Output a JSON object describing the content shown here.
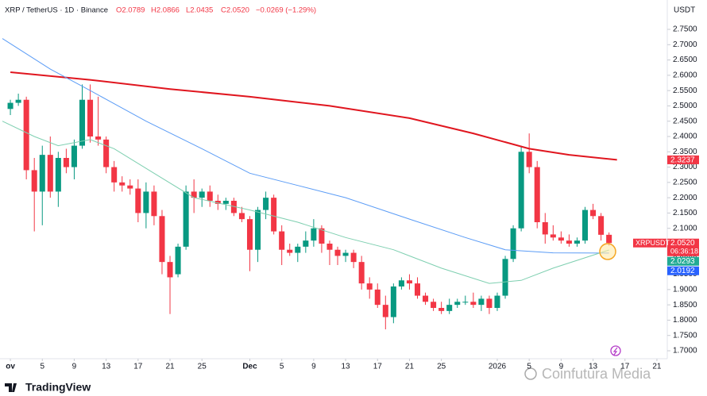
{
  "header": {
    "symbol": "XRP / TetherUS · 1D · Binance",
    "open": "O2.0789",
    "high": "H2.0866",
    "low": "L2.0435",
    "close": "C2.0520",
    "change": "−0.0269 (−1.29%)"
  },
  "currency": "USDT",
  "branding": "TradingView",
  "watermark": "Coinfutura Media",
  "chart_data": {
    "type": "candlestick",
    "up_color": "#089981",
    "down_color": "#f23645",
    "xlim": [
      -1.3,
      82.3
    ],
    "ylim": [
      1.7,
      2.75
    ],
    "grid": false,
    "candles": [
      {
        "o": 2.49,
        "h": 2.52,
        "l": 2.47,
        "c": 2.51
      },
      {
        "o": 2.51,
        "h": 2.54,
        "l": 2.5,
        "c": 2.52
      },
      {
        "o": 2.52,
        "h": 2.53,
        "l": 2.26,
        "c": 2.29
      },
      {
        "o": 2.29,
        "h": 2.33,
        "l": 2.09,
        "c": 2.22
      },
      {
        "o": 2.22,
        "h": 2.37,
        "l": 2.11,
        "c": 2.34
      },
      {
        "o": 2.34,
        "h": 2.4,
        "l": 2.2,
        "c": 2.22
      },
      {
        "o": 2.22,
        "h": 2.35,
        "l": 2.17,
        "c": 2.33
      },
      {
        "o": 2.33,
        "h": 2.36,
        "l": 2.28,
        "c": 2.3
      },
      {
        "o": 2.3,
        "h": 2.39,
        "l": 2.26,
        "c": 2.37
      },
      {
        "o": 2.37,
        "h": 2.57,
        "l": 2.36,
        "c": 2.52
      },
      {
        "o": 2.52,
        "h": 2.57,
        "l": 2.38,
        "c": 2.4
      },
      {
        "o": 2.4,
        "h": 2.53,
        "l": 2.37,
        "c": 2.39
      },
      {
        "o": 2.39,
        "h": 2.4,
        "l": 2.28,
        "c": 2.3
      },
      {
        "o": 2.3,
        "h": 2.32,
        "l": 2.22,
        "c": 2.25
      },
      {
        "o": 2.25,
        "h": 2.27,
        "l": 2.22,
        "c": 2.24
      },
      {
        "o": 2.24,
        "h": 2.26,
        "l": 2.21,
        "c": 2.23
      },
      {
        "o": 2.23,
        "h": 2.26,
        "l": 2.12,
        "c": 2.15
      },
      {
        "o": 2.15,
        "h": 2.25,
        "l": 2.1,
        "c": 2.22
      },
      {
        "o": 2.22,
        "h": 2.24,
        "l": 2.11,
        "c": 2.14
      },
      {
        "o": 2.14,
        "h": 2.16,
        "l": 1.95,
        "c": 1.99
      },
      {
        "o": 1.99,
        "h": 2.01,
        "l": 1.82,
        "c": 1.94
      },
      {
        "o": 1.95,
        "h": 2.05,
        "l": 1.94,
        "c": 2.04
      },
      {
        "o": 2.04,
        "h": 2.24,
        "l": 2.03,
        "c": 2.22
      },
      {
        "o": 2.22,
        "h": 2.26,
        "l": 2.15,
        "c": 2.2
      },
      {
        "o": 2.2,
        "h": 2.23,
        "l": 2.17,
        "c": 2.22
      },
      {
        "o": 2.22,
        "h": 2.24,
        "l": 2.17,
        "c": 2.19
      },
      {
        "o": 2.19,
        "h": 2.21,
        "l": 2.16,
        "c": 2.18
      },
      {
        "o": 2.18,
        "h": 2.2,
        "l": 2.16,
        "c": 2.19
      },
      {
        "o": 2.19,
        "h": 2.2,
        "l": 2.14,
        "c": 2.15
      },
      {
        "o": 2.15,
        "h": 2.17,
        "l": 2.12,
        "c": 2.13
      },
      {
        "o": 2.13,
        "h": 2.14,
        "l": 1.96,
        "c": 2.03
      },
      {
        "o": 2.03,
        "h": 2.17,
        "l": 1.99,
        "c": 2.16
      },
      {
        "o": 2.16,
        "h": 2.22,
        "l": 2.13,
        "c": 2.2
      },
      {
        "o": 2.2,
        "h": 2.21,
        "l": 2.08,
        "c": 2.09
      },
      {
        "o": 2.09,
        "h": 2.11,
        "l": 1.98,
        "c": 2.03
      },
      {
        "o": 2.03,
        "h": 2.05,
        "l": 2.01,
        "c": 2.02
      },
      {
        "o": 2.02,
        "h": 2.05,
        "l": 1.99,
        "c": 2.04
      },
      {
        "o": 2.04,
        "h": 2.09,
        "l": 2.02,
        "c": 2.06
      },
      {
        "o": 2.06,
        "h": 2.13,
        "l": 2.04,
        "c": 2.1
      },
      {
        "o": 2.1,
        "h": 2.11,
        "l": 2.02,
        "c": 2.05
      },
      {
        "o": 2.05,
        "h": 2.06,
        "l": 1.98,
        "c": 2.03
      },
      {
        "o": 2.03,
        "h": 2.04,
        "l": 1.98,
        "c": 2.01
      },
      {
        "o": 2.01,
        "h": 2.03,
        "l": 1.99,
        "c": 2.02
      },
      {
        "o": 2.02,
        "h": 2.03,
        "l": 1.97,
        "c": 1.99
      },
      {
        "o": 1.99,
        "h": 2.01,
        "l": 1.9,
        "c": 1.92
      },
      {
        "o": 1.92,
        "h": 1.94,
        "l": 1.87,
        "c": 1.9
      },
      {
        "o": 1.9,
        "h": 1.92,
        "l": 1.84,
        "c": 1.85
      },
      {
        "o": 1.85,
        "h": 1.88,
        "l": 1.77,
        "c": 1.81
      },
      {
        "o": 1.81,
        "h": 1.92,
        "l": 1.79,
        "c": 1.91
      },
      {
        "o": 1.91,
        "h": 1.94,
        "l": 1.9,
        "c": 1.93
      },
      {
        "o": 1.93,
        "h": 1.95,
        "l": 1.9,
        "c": 1.92
      },
      {
        "o": 1.92,
        "h": 1.94,
        "l": 1.87,
        "c": 1.88
      },
      {
        "o": 1.88,
        "h": 1.89,
        "l": 1.85,
        "c": 1.86
      },
      {
        "o": 1.86,
        "h": 1.87,
        "l": 1.83,
        "c": 1.84
      },
      {
        "o": 1.84,
        "h": 1.86,
        "l": 1.82,
        "c": 1.83
      },
      {
        "o": 1.83,
        "h": 1.87,
        "l": 1.82,
        "c": 1.85
      },
      {
        "o": 1.85,
        "h": 1.87,
        "l": 1.84,
        "c": 1.86
      },
      {
        "o": 1.86,
        "h": 1.88,
        "l": 1.85,
        "c": 1.86
      },
      {
        "o": 1.86,
        "h": 1.89,
        "l": 1.84,
        "c": 1.85
      },
      {
        "o": 1.85,
        "h": 1.88,
        "l": 1.83,
        "c": 1.87
      },
      {
        "o": 1.87,
        "h": 1.88,
        "l": 1.82,
        "c": 1.84
      },
      {
        "o": 1.84,
        "h": 1.89,
        "l": 1.83,
        "c": 1.88
      },
      {
        "o": 1.88,
        "h": 2.01,
        "l": 1.87,
        "c": 2.0
      },
      {
        "o": 2.0,
        "h": 2.11,
        "l": 1.99,
        "c": 2.1
      },
      {
        "o": 2.1,
        "h": 2.37,
        "l": 2.09,
        "c": 2.35
      },
      {
        "o": 2.35,
        "h": 2.41,
        "l": 2.28,
        "c": 2.3
      },
      {
        "o": 2.3,
        "h": 2.32,
        "l": 2.1,
        "c": 2.12
      },
      {
        "o": 2.12,
        "h": 2.15,
        "l": 2.05,
        "c": 2.08
      },
      {
        "o": 2.08,
        "h": 2.11,
        "l": 2.06,
        "c": 2.07
      },
      {
        "o": 2.07,
        "h": 2.09,
        "l": 2.05,
        "c": 2.06
      },
      {
        "o": 2.06,
        "h": 2.08,
        "l": 2.04,
        "c": 2.05
      },
      {
        "o": 2.05,
        "h": 2.07,
        "l": 2.04,
        "c": 2.06
      },
      {
        "o": 2.06,
        "h": 2.17,
        "l": 2.05,
        "c": 2.16
      },
      {
        "o": 2.16,
        "h": 2.18,
        "l": 2.13,
        "c": 2.14
      },
      {
        "o": 2.14,
        "h": 2.15,
        "l": 2.06,
        "c": 2.0789
      },
      {
        "o": 2.0789,
        "h": 2.0866,
        "l": 2.0435,
        "c": 2.052
      }
    ],
    "series": [
      {
        "color": "#e0161f",
        "width": 2,
        "x": [
          0,
          10,
          20,
          30,
          40,
          50,
          58,
          65,
          70,
          76
        ],
        "values": [
          2.61,
          2.585,
          2.555,
          2.53,
          2.5,
          2.46,
          2.41,
          2.36,
          2.34,
          2.3237
        ]
      },
      {
        "color": "#5b9cf6",
        "width": 1,
        "x": [
          -1,
          5,
          10,
          17,
          24,
          30,
          36,
          42,
          50,
          57,
          62,
          68,
          75
        ],
        "values": [
          2.72,
          2.62,
          2.55,
          2.45,
          2.36,
          2.28,
          2.24,
          2.2,
          2.13,
          2.07,
          2.03,
          2.02,
          2.0192
        ]
      },
      {
        "color": "#7ecfb0",
        "width": 1,
        "x": [
          -1,
          3,
          6,
          10,
          13,
          18,
          23,
          30,
          36,
          42,
          48,
          54,
          60,
          64,
          68,
          75
        ],
        "values": [
          2.45,
          2.4,
          2.37,
          2.39,
          2.36,
          2.28,
          2.2,
          2.16,
          2.12,
          2.07,
          2.03,
          1.97,
          1.92,
          1.93,
          1.97,
          2.0293
        ]
      }
    ],
    "xticks": [
      {
        "value": 0,
        "label": "ov"
      },
      {
        "value": 4,
        "label": "5"
      },
      {
        "value": 8,
        "label": "9"
      },
      {
        "value": 12,
        "label": "13"
      },
      {
        "value": 16,
        "label": "17"
      },
      {
        "value": 20,
        "label": "21"
      },
      {
        "value": 24,
        "label": "25"
      },
      {
        "value": 30,
        "label": "Dec"
      },
      {
        "value": 34,
        "label": "5"
      },
      {
        "value": 38,
        "label": "9"
      },
      {
        "value": 42,
        "label": "13"
      },
      {
        "value": 46,
        "label": "17"
      },
      {
        "value": 50,
        "label": "21"
      },
      {
        "value": 54,
        "label": "25"
      },
      {
        "value": 61,
        "label": "2026"
      },
      {
        "value": 65,
        "label": "5"
      },
      {
        "value": 69,
        "label": "9"
      },
      {
        "value": 73,
        "label": "13"
      },
      {
        "value": 77,
        "label": "17"
      },
      {
        "value": 81,
        "label": "21"
      }
    ],
    "yticks": [
      {
        "value": 1.7,
        "label": "1.7000"
      },
      {
        "value": 1.75,
        "label": "1.7500"
      },
      {
        "value": 1.8,
        "label": "1.8000"
      },
      {
        "value": 1.85,
        "label": "1.8500"
      },
      {
        "value": 1.9,
        "label": "1.9000"
      },
      {
        "value": 1.95,
        "label": "1.9500"
      },
      {
        "value": 2.0,
        "label": "2.0000"
      },
      {
        "value": 2.05,
        "label": "2.0500"
      },
      {
        "value": 2.1,
        "label": "2.1000"
      },
      {
        "value": 2.15,
        "label": "2.1500"
      },
      {
        "value": 2.2,
        "label": "2.2000"
      },
      {
        "value": 2.25,
        "label": "2.2500"
      },
      {
        "value": 2.3,
        "label": "2.3000"
      },
      {
        "value": 2.35,
        "label": "2.3500"
      },
      {
        "value": 2.4,
        "label": "2.4000"
      },
      {
        "value": 2.45,
        "label": "2.4500"
      },
      {
        "value": 2.5,
        "label": "2.5000"
      },
      {
        "value": 2.55,
        "label": "2.5500"
      },
      {
        "value": 2.6,
        "label": "2.6000"
      },
      {
        "value": 2.65,
        "label": "2.6500"
      },
      {
        "value": 2.7,
        "label": "2.7000"
      },
      {
        "value": 2.75,
        "label": "2.7500"
      }
    ],
    "price_labels": [
      {
        "value": 2.3237,
        "label": "2.3237",
        "color": "#f23645"
      },
      {
        "value": 2.052,
        "label": "2.0520",
        "color": "#f23645",
        "symbol": "XRPUSDT",
        "countdown": "06:36:18"
      },
      {
        "value": 2.0293,
        "label": "2.0293",
        "color": "#22ab94"
      },
      {
        "value": 2.0192,
        "label": "2.0192",
        "color": "#2962ff"
      }
    ]
  }
}
